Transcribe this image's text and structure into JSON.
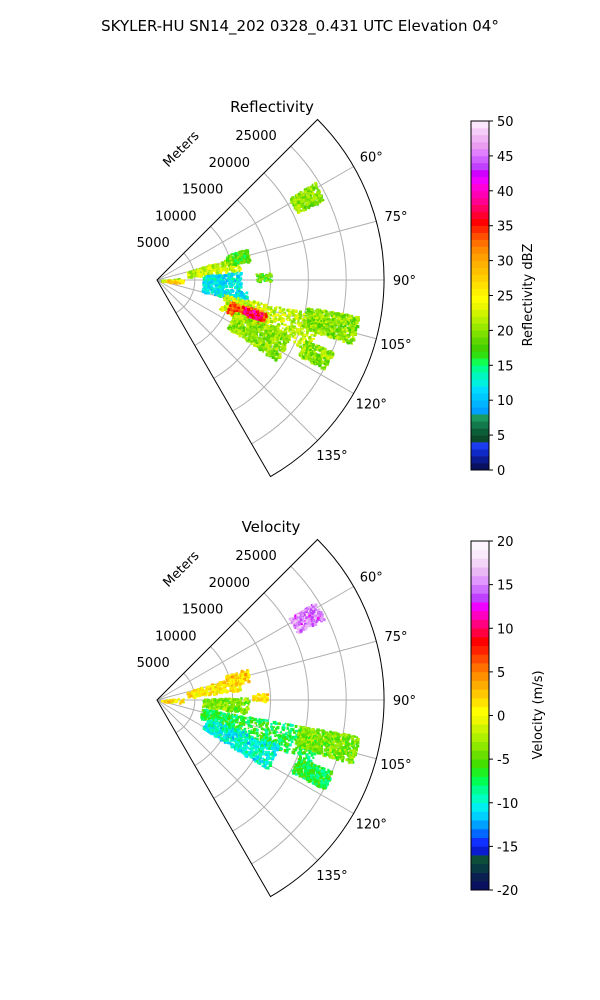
{
  "figure": {
    "suptitle": "SKYLER-HU  SN14_202  0328_0.431 UTC Elevation 04°"
  },
  "chart_data": [
    {
      "type": "heatmap",
      "title": "Reflectivity",
      "projection": "polar sector",
      "theta_range_deg": [
        45,
        150
      ],
      "r_range_m": [
        0,
        30000
      ],
      "radial_axis_label": "Meters",
      "radial_ticks": [
        5000,
        10000,
        15000,
        20000,
        25000
      ],
      "radial_tick_labels": [
        "5000",
        "10000",
        "15000",
        "20000",
        "25000"
      ],
      "angle_ticks": [
        60,
        75,
        90,
        105,
        120,
        135
      ],
      "angle_tick_labels": [
        "60°",
        "75°",
        "90°",
        "105°",
        "120°",
        "135°"
      ],
      "grid": true,
      "colorbar": {
        "label": "Reflectivity dBZ",
        "range": [
          0,
          50
        ],
        "ticks": [
          0,
          5,
          10,
          15,
          20,
          25,
          30,
          35,
          40,
          45,
          50
        ],
        "tick_labels": [
          "0",
          "5",
          "10",
          "15",
          "20",
          "25",
          "30",
          "35",
          "40",
          "45",
          "50"
        ],
        "colors": [
          "#0a1060",
          "#0c1a90",
          "#0f28c8",
          "#1a3cf0",
          "#0a4a2a",
          "#0c5e38",
          "#127a4a",
          "#1a9a5e",
          "#00a0ff",
          "#00b4ff",
          "#00c8ff",
          "#00dcff",
          "#00f0e0",
          "#00f8c0",
          "#00ff90",
          "#10ff50",
          "#30e010",
          "#44d000",
          "#60d800",
          "#7ce000",
          "#98e800",
          "#b4f000",
          "#d0f400",
          "#ecf800",
          "#ffff00",
          "#fff000",
          "#ffe000",
          "#ffd000",
          "#ffc000",
          "#ffb000",
          "#ffa000",
          "#ff8c00",
          "#ff7000",
          "#ff5000",
          "#ff2800",
          "#ff0000",
          "#ff0030",
          "#ff0060",
          "#ff0090",
          "#ff00b4",
          "#ff00d8",
          "#f000ff",
          "#d000ff",
          "#c040ff",
          "#d060ff",
          "#e080ff",
          "#ea9cf0",
          "#f0b4f4",
          "#f6ccf8",
          "#fbe6fb"
        ]
      },
      "echo_regions": [
        {
          "theta": [
            58,
            64
          ],
          "r": [
            20500,
            24500
          ],
          "value": 20
        },
        {
          "theta": [
            73,
            83
          ],
          "r": [
            4000,
            11000
          ],
          "value": 22
        },
        {
          "theta": [
            70,
            78
          ],
          "r": [
            9500,
            12500
          ],
          "value": 18
        },
        {
          "theta": [
            84,
            92
          ],
          "r": [
            500,
            3000
          ],
          "value": 21
        },
        {
          "theta": [
            88,
            96
          ],
          "r": [
            1000,
            3500
          ],
          "value": 27
        },
        {
          "theta": [
            84,
            96
          ],
          "r": [
            6000,
            11000
          ],
          "value": 12
        },
        {
          "theta": [
            86,
            90
          ],
          "r": [
            13000,
            15000
          ],
          "value": 18
        },
        {
          "theta": [
            97,
            104
          ],
          "r": [
            6000,
            12000
          ],
          "value": 12
        },
        {
          "theta": [
            102,
            115
          ],
          "r": [
            9000,
            22000
          ],
          "value": 22
        },
        {
          "theta": [
            106,
            114
          ],
          "r": [
            10000,
            15000
          ],
          "value": 33
        },
        {
          "theta": [
            107,
            112
          ],
          "r": [
            12000,
            14500
          ],
          "value": 38
        },
        {
          "theta": [
            112,
            124
          ],
          "r": [
            11000,
            19000
          ],
          "value": 20
        },
        {
          "theta": [
            100,
            108
          ],
          "r": [
            20000,
            27000
          ],
          "value": 20
        },
        {
          "theta": [
            112,
            118
          ],
          "r": [
            21000,
            25000
          ],
          "value": 20
        }
      ]
    },
    {
      "type": "heatmap",
      "title": "Velocity",
      "projection": "polar sector",
      "theta_range_deg": [
        45,
        150
      ],
      "r_range_m": [
        0,
        30000
      ],
      "radial_axis_label": "Meters",
      "radial_ticks": [
        5000,
        10000,
        15000,
        20000,
        25000
      ],
      "radial_tick_labels": [
        "5000",
        "10000",
        "15000",
        "20000",
        "25000"
      ],
      "angle_ticks": [
        60,
        75,
        90,
        105,
        120,
        135
      ],
      "angle_tick_labels": [
        "60°",
        "75°",
        "90°",
        "105°",
        "120°",
        "135°"
      ],
      "grid": true,
      "colorbar": {
        "label": "Velocity (m/s)",
        "range": [
          -20,
          20
        ],
        "ticks": [
          -20,
          -15,
          -10,
          -5,
          0,
          5,
          10,
          15,
          20
        ],
        "tick_labels": [
          "-20",
          "-15",
          "-10",
          "-5",
          "0",
          "5",
          "10",
          "15",
          "20"
        ],
        "colors": [
          "#0a1060",
          "#0a2050",
          "#083a44",
          "#0c4e3a",
          "#0a1cd0",
          "#1030ff",
          "#0068ff",
          "#00a0ff",
          "#00d0ff",
          "#00f0f0",
          "#00ffc0",
          "#00ff90",
          "#00ff50",
          "#20f020",
          "#44e000",
          "#6ae000",
          "#8ee800",
          "#aef000",
          "#ccf400",
          "#eef800",
          "#ffff00",
          "#ffe400",
          "#ffc800",
          "#ffac00",
          "#ff9000",
          "#ff7000",
          "#ff4800",
          "#ff2000",
          "#ff0000",
          "#ff0040",
          "#ff0080",
          "#ff00c0",
          "#f000ff",
          "#c040ff",
          "#d070ff",
          "#e098ff",
          "#ebb8f6",
          "#f4d4f8",
          "#fbeafb",
          "#fdf4fd"
        ]
      },
      "echo_regions": [
        {
          "theta": [
            58,
            64
          ],
          "r": [
            20500,
            24500
          ],
          "value": 15
        },
        {
          "theta": [
            73,
            83
          ],
          "r": [
            4000,
            11000
          ],
          "value": 1
        },
        {
          "theta": [
            70,
            78
          ],
          "r": [
            9500,
            12500
          ],
          "value": 2
        },
        {
          "theta": [
            84,
            96
          ],
          "r": [
            500,
            3500
          ],
          "value": 1
        },
        {
          "theta": [
            86,
            90
          ],
          "r": [
            12500,
            14500
          ],
          "value": 1
        },
        {
          "theta": [
            88,
            98
          ],
          "r": [
            6000,
            12000
          ],
          "value": -4
        },
        {
          "theta": [
            100,
            112
          ],
          "r": [
            6000,
            22000
          ],
          "value": -7
        },
        {
          "theta": [
            110,
            122
          ],
          "r": [
            7000,
            17000
          ],
          "value": -10
        },
        {
          "theta": [
            100,
            108
          ],
          "r": [
            19000,
            27000
          ],
          "value": -4
        },
        {
          "theta": [
            112,
            118
          ],
          "r": [
            20000,
            25000
          ],
          "value": -7
        }
      ]
    }
  ]
}
